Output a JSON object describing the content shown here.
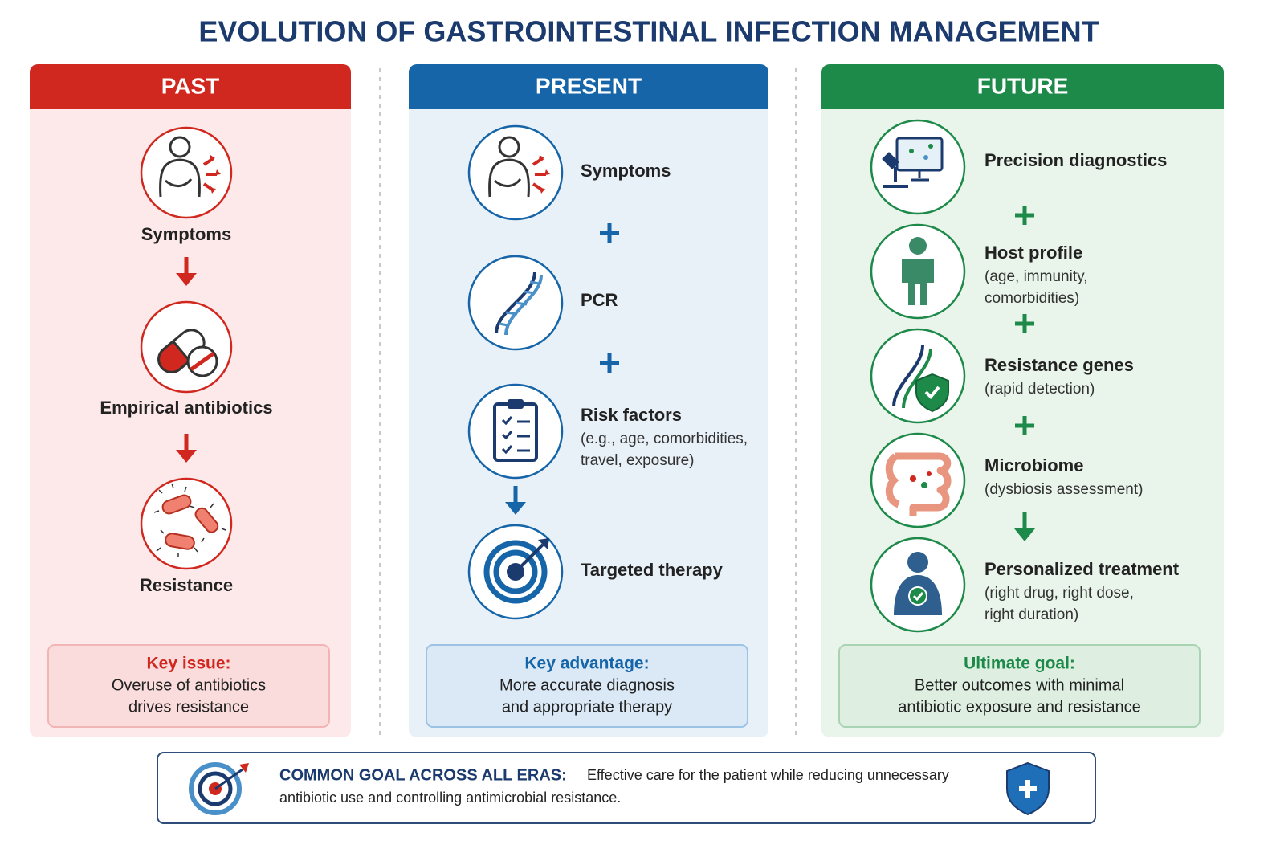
{
  "title": "EVOLUTION OF GASTROINTESTINAL INFECTION MANAGEMENT",
  "columns": [
    {
      "header": "PAST",
      "steps": [
        {
          "label": "Symptoms"
        },
        {
          "label": "Empirical antibiotics"
        },
        {
          "label": "Resistance"
        }
      ],
      "box": {
        "heading": "Key issue:",
        "lines": [
          "Overuse of antibiotics",
          "drives resistance"
        ]
      }
    },
    {
      "header": "PRESENT",
      "steps": [
        {
          "label": "Symptoms"
        },
        {
          "label": "PCR"
        },
        {
          "label": "Risk factors",
          "details": [
            "(e.g., age, comorbidities,",
            "travel, exposure)"
          ]
        },
        {
          "label": "Targeted therapy"
        }
      ],
      "box": {
        "heading": "Key advantage:",
        "lines": [
          "More accurate diagnosis",
          "and appropriate therapy"
        ]
      }
    },
    {
      "header": "FUTURE",
      "steps": [
        {
          "label": "Precision diagnostics"
        },
        {
          "label": "Host profile",
          "details": [
            "(age, immunity,",
            "comorbidities)"
          ]
        },
        {
          "label": "Resistance genes",
          "details": [
            "(rapid detection)"
          ]
        },
        {
          "label": "Microbiome",
          "details": [
            "(dysbiosis assessment)"
          ]
        },
        {
          "label": "Personalized treatment",
          "details": [
            "(right drug, right dose,",
            "right duration)"
          ]
        }
      ],
      "box": {
        "heading": "Ultimate goal:",
        "lines": [
          "Better outcomes with minimal",
          "antibiotic exposure and resistance"
        ]
      }
    }
  ],
  "footer": {
    "heading": "COMMON GOAL ACROSS ALL ERAS:",
    "lines": [
      "Effective care for the patient while reducing unnecessary",
      "antibiotic use and controlling antimicrobial resistance."
    ]
  }
}
